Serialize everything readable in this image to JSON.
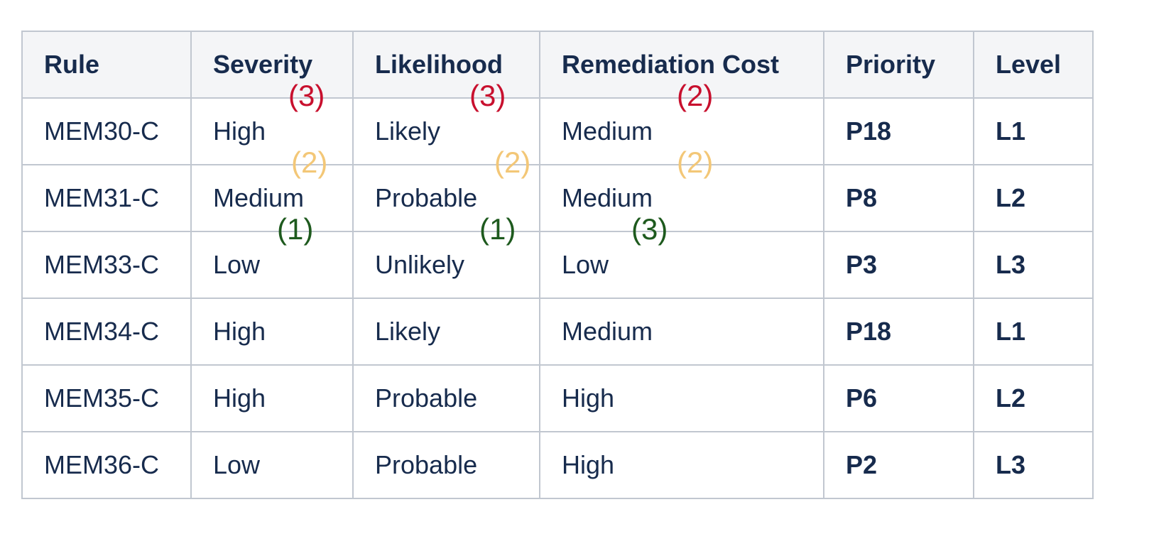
{
  "table": {
    "headers": [
      "Rule",
      "Severity",
      "Likelihood",
      "Remediation Cost",
      "Priority",
      "Level"
    ],
    "rows": [
      {
        "rule": "MEM30-C",
        "severity": "High",
        "severity_score": "(3)",
        "likelihood": "Likely",
        "likelihood_score": "(3)",
        "cost": "Medium",
        "cost_score": "(2)",
        "priority": "P18",
        "level": "L1",
        "tone": "red",
        "score_tone": "high"
      },
      {
        "rule": "MEM31-C",
        "severity": "Medium",
        "severity_score": "(2)",
        "likelihood": "Probable",
        "likelihood_score": "(2)",
        "cost": "Medium",
        "cost_score": "(2)",
        "priority": "P8",
        "level": "L2",
        "tone": "amber",
        "score_tone": "med"
      },
      {
        "rule": "MEM33-C",
        "severity": "Low",
        "severity_score": "(1)",
        "likelihood": "Unlikely",
        "likelihood_score": "(1)",
        "cost": "Low",
        "cost_score": "(3)",
        "priority": "P3",
        "level": "L3",
        "tone": "green",
        "score_tone": "low"
      },
      {
        "rule": "MEM34-C",
        "severity": "High",
        "severity_score": "",
        "likelihood": "Likely",
        "likelihood_score": "",
        "cost": "Medium",
        "cost_score": "",
        "priority": "P18",
        "level": "L1",
        "tone": "red",
        "score_tone": ""
      },
      {
        "rule": "MEM35-C",
        "severity": "High",
        "severity_score": "",
        "likelihood": "Probable",
        "likelihood_score": "",
        "cost": "High",
        "cost_score": "",
        "priority": "P6",
        "level": "L2",
        "tone": "amber",
        "score_tone": ""
      },
      {
        "rule": "MEM36-C",
        "severity": "Low",
        "severity_score": "",
        "likelihood": "Probable",
        "likelihood_score": "",
        "cost": "High",
        "cost_score": "",
        "priority": "P2",
        "level": "L3",
        "tone": "green",
        "score_tone": ""
      }
    ]
  },
  "colors": {
    "red": "#e8001c",
    "amber": "#d39b38",
    "green": "#1f8a2e",
    "score_high": "#c8102e",
    "score_med": "#f3c777",
    "score_low": "#1e5a1e",
    "border": "#c1c7d0",
    "header_bg": "#f4f5f7"
  }
}
